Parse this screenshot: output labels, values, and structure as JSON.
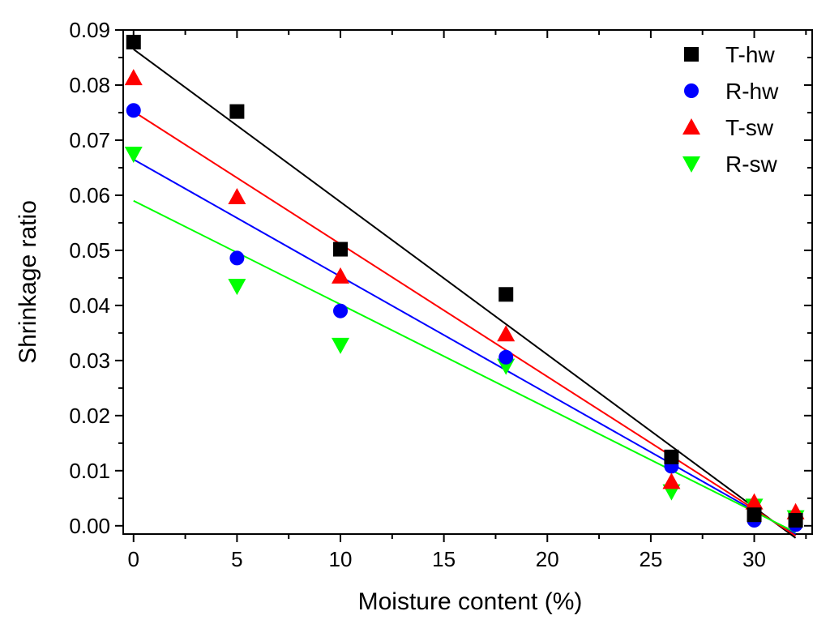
{
  "chart_data": {
    "type": "scatter",
    "title": "",
    "xlabel": "Moisture content (%)",
    "ylabel": "Shrinkage ratio",
    "xlim": [
      -0.5,
      32.8
    ],
    "ylim": [
      -0.0015,
      0.09
    ],
    "x_ticks": [
      0,
      5,
      10,
      15,
      20,
      25,
      30
    ],
    "x_tick_labels": [
      "0",
      "5",
      "10",
      "15",
      "20",
      "25",
      "30"
    ],
    "y_ticks": [
      0.0,
      0.01,
      0.02,
      0.03,
      0.04,
      0.05,
      0.06,
      0.07,
      0.08,
      0.09
    ],
    "y_tick_labels": [
      "0.00",
      "0.01",
      "0.02",
      "0.03",
      "0.04",
      "0.05",
      "0.06",
      "0.07",
      "0.08",
      "0.09"
    ],
    "legend_position": "top-right",
    "grid": false,
    "series": [
      {
        "name": "T-hw",
        "marker": "square",
        "color": "#000000",
        "x": [
          0,
          5,
          10,
          18,
          26,
          30,
          32
        ],
        "y": [
          0.0878,
          0.0752,
          0.0502,
          0.042,
          0.0125,
          0.002,
          0.001
        ],
        "fit": {
          "x": [
            0,
            32
          ],
          "y": [
            0.0865,
            -0.0022
          ]
        }
      },
      {
        "name": "R-hw",
        "marker": "circle",
        "color": "#0000ff",
        "x": [
          0,
          5,
          10,
          18,
          26,
          30,
          32
        ],
        "y": [
          0.0754,
          0.0486,
          0.039,
          0.0306,
          0.0108,
          0.001,
          0.0002
        ],
        "fit": {
          "x": [
            0,
            32
          ],
          "y": [
            0.0665,
            -0.0015
          ]
        }
      },
      {
        "name": "T-sw",
        "marker": "triangle-up",
        "color": "#ff0000",
        "x": [
          0,
          5,
          10,
          18,
          26,
          30,
          32
        ],
        "y": [
          0.0813,
          0.0597,
          0.0453,
          0.0348,
          0.008,
          0.0043,
          0.0025
        ],
        "fit": {
          "x": [
            0,
            32
          ],
          "y": [
            0.0752,
            -0.0018
          ]
        }
      },
      {
        "name": "R-sw",
        "marker": "triangle-down",
        "color": "#00ff00",
        "x": [
          0,
          5,
          10,
          18,
          26,
          30,
          32
        ],
        "y": [
          0.0675,
          0.0435,
          0.0328,
          0.029,
          0.0062,
          0.0036,
          0.0015
        ],
        "fit": {
          "x": [
            0,
            32
          ],
          "y": [
            0.059,
            -0.0012
          ]
        }
      }
    ]
  }
}
